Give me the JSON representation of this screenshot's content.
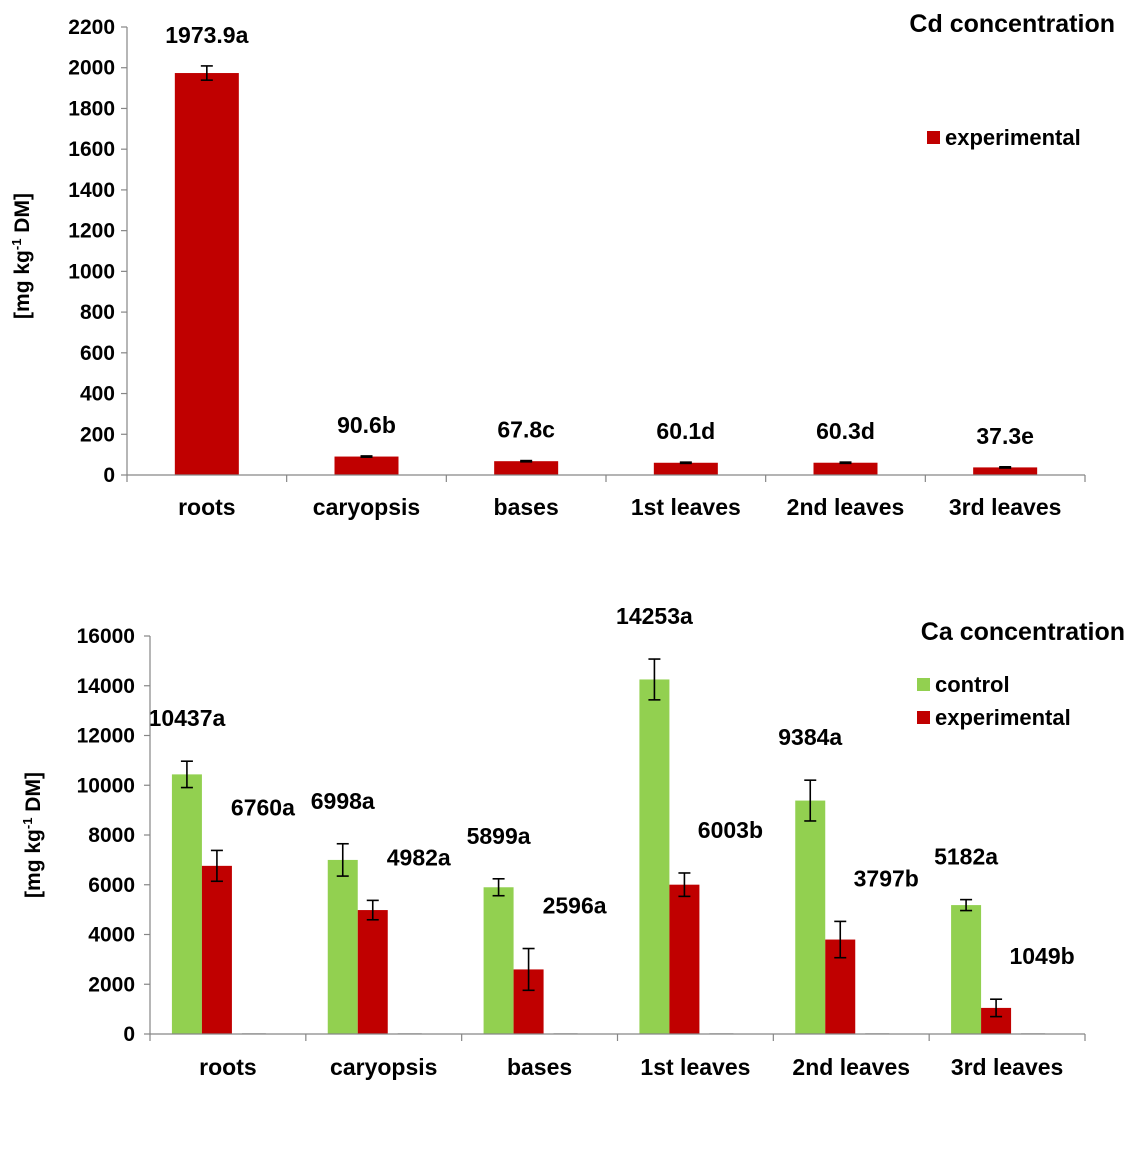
{
  "colors": {
    "control": "#92D050",
    "experimental": "#C00000",
    "axis": "#868686",
    "errorbar": "#000000"
  },
  "chart_data": [
    {
      "type": "bar",
      "title": "Cd concentration",
      "ylabel_parts": [
        "[mg kg",
        "-1",
        " DM]"
      ],
      "ylim": [
        0,
        2200
      ],
      "yticks": [
        0,
        200,
        400,
        600,
        800,
        1000,
        1200,
        1400,
        1600,
        1800,
        2000,
        2200
      ],
      "categories": [
        "roots",
        "caryopsis",
        "bases",
        "1st leaves",
        "2nd leaves",
        "3rd leaves"
      ],
      "legend_position": "top-right",
      "series": [
        {
          "name": "experimental",
          "color_key": "experimental",
          "values": [
            1973.9,
            90.6,
            67.8,
            60.1,
            60.3,
            37.3
          ],
          "errors": [
            35,
            3,
            3,
            3,
            3,
            3
          ],
          "labels": [
            "1973.9a",
            "90.6b",
            "67.8c",
            "60.1d",
            "60.3d",
            "37.3e"
          ]
        }
      ]
    },
    {
      "type": "bar",
      "title": "Ca concentration",
      "ylabel_parts": [
        "[mg kg",
        "-1",
        " DM]"
      ],
      "ylim": [
        0,
        16000
      ],
      "yticks": [
        0,
        2000,
        4000,
        6000,
        8000,
        10000,
        12000,
        14000,
        16000
      ],
      "categories": [
        "roots",
        "caryopsis",
        "bases",
        "1st leaves",
        "2nd leaves",
        "3rd leaves"
      ],
      "legend_position": "top-right",
      "series": [
        {
          "name": "control",
          "color_key": "control",
          "values": [
            10437,
            6998,
            5899,
            14253,
            9384,
            5182
          ],
          "errors": [
            530,
            650,
            340,
            820,
            820,
            220
          ],
          "labels": [
            "10437a",
            "6998a",
            "5899a",
            "14253a",
            "9384a",
            "5182a"
          ]
        },
        {
          "name": "experimental",
          "color_key": "experimental",
          "values": [
            6760,
            4982,
            2596,
            6003,
            3797,
            1049
          ],
          "errors": [
            620,
            390,
            840,
            470,
            730,
            350
          ],
          "labels": [
            "6760a",
            "4982a",
            "2596a",
            "6003b",
            "3797b",
            "1049b"
          ]
        }
      ]
    }
  ]
}
